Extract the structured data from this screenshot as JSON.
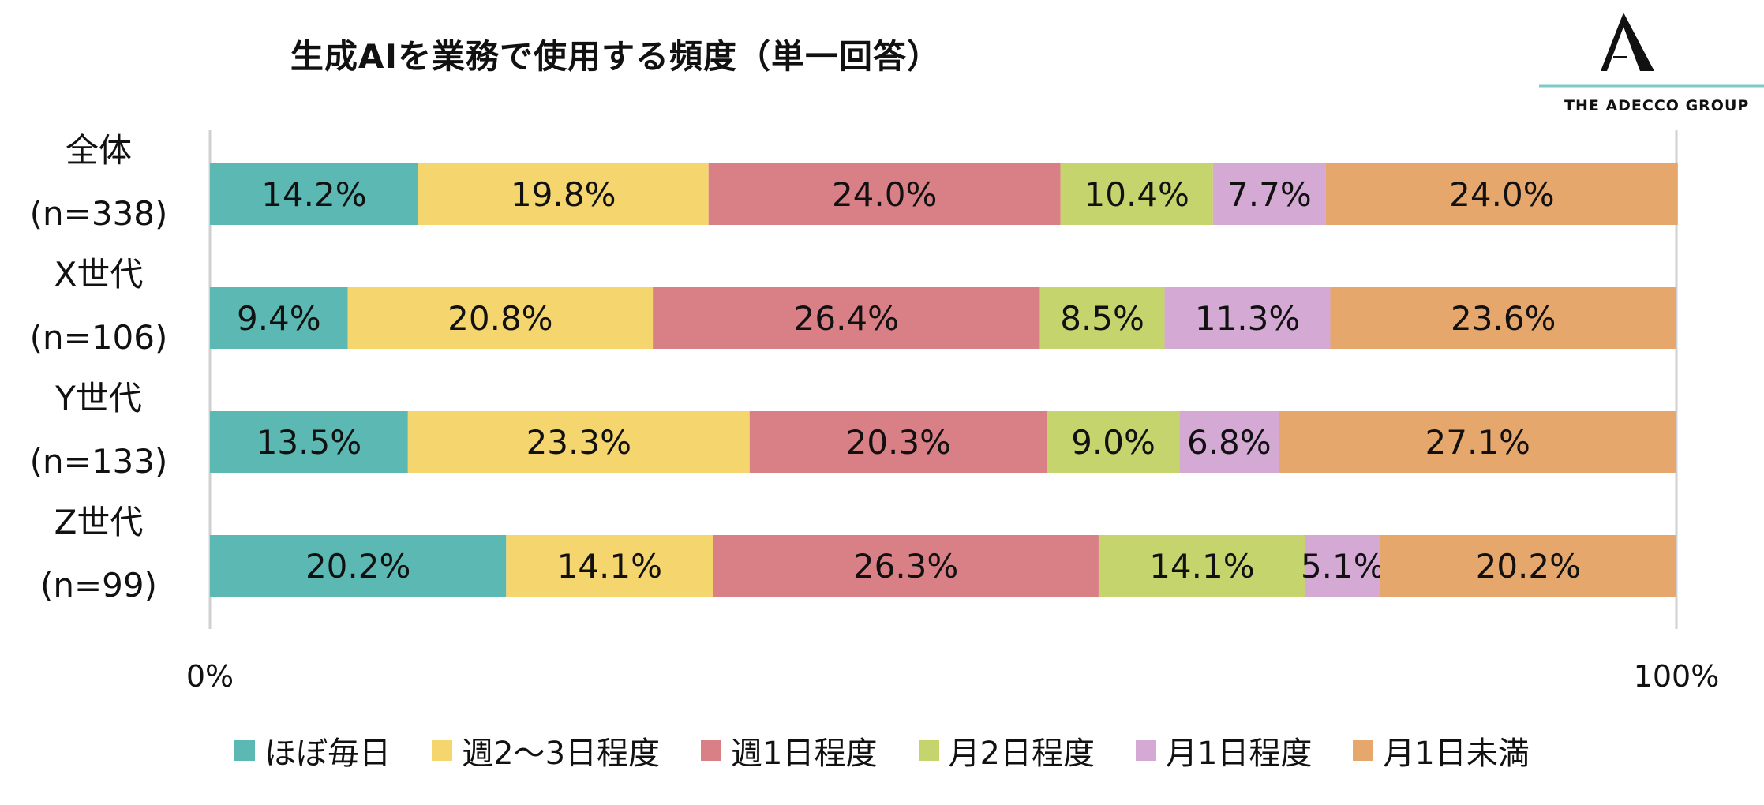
{
  "title": "生成AIを業務で使用する頻度（単一回答）",
  "logo": {
    "text": "THE ADECCO GROUP"
  },
  "chart_data": {
    "type": "bar",
    "orientation": "horizontal",
    "stacked": true,
    "title": "生成AIを業務で使用する頻度（単一回答）",
    "categories": [
      {
        "name": "全体",
        "n": "(n=338)"
      },
      {
        "name": "X世代",
        "n": "(n=106)"
      },
      {
        "name": "Y世代",
        "n": "(n=133)"
      },
      {
        "name": "Z世代",
        "n": "(n=99)"
      }
    ],
    "series": [
      {
        "name": "ほぼ毎日",
        "color": "#5cb8b2",
        "values": [
          14.2,
          9.4,
          13.5,
          20.2
        ],
        "labels": [
          "14.2%",
          "9.4%",
          "13.5%",
          "20.2%"
        ]
      },
      {
        "name": "週2～3日程度",
        "color": "#f5d56e",
        "values": [
          19.8,
          20.8,
          23.3,
          14.1
        ],
        "labels": [
          "19.8%",
          "20.8%",
          "23.3%",
          "14.1%"
        ]
      },
      {
        "name": "週1日程度",
        "color": "#d97f86",
        "values": [
          24.0,
          26.4,
          20.3,
          26.3
        ],
        "labels": [
          "24.0%",
          "26.4%",
          "20.3%",
          "26.3%"
        ]
      },
      {
        "name": "月2日程度",
        "color": "#c5d46c",
        "values": [
          10.4,
          8.5,
          9.0,
          14.1
        ],
        "labels": [
          "10.4%",
          "8.5%",
          "9.0%",
          "14.1%"
        ]
      },
      {
        "name": "月1日程度",
        "color": "#d4a9d4",
        "values": [
          7.7,
          11.3,
          6.8,
          5.1
        ],
        "labels": [
          "7.7%",
          "11.3%",
          "6.8%",
          "5.1%"
        ]
      },
      {
        "name": "月1日未満",
        "color": "#e6a76d",
        "values": [
          24.0,
          23.6,
          27.1,
          20.2
        ],
        "labels": [
          "24.0%",
          "23.6%",
          "27.1%",
          "20.2%"
        ]
      }
    ],
    "x_ticks": [
      "0%",
      "100%"
    ],
    "xlim": [
      0,
      100
    ],
    "legend_position": "bottom",
    "grid": false
  }
}
